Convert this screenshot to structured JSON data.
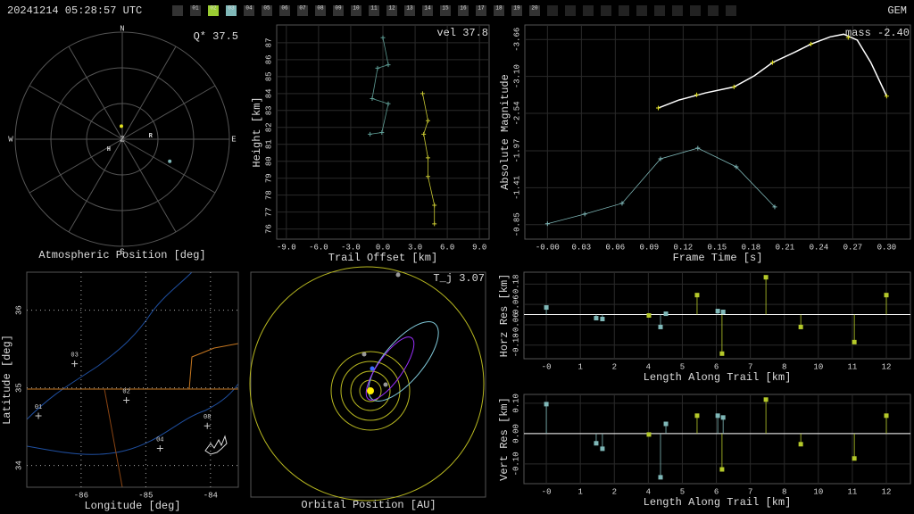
{
  "header": {
    "timestamp": "20241214 05:28:57 UTC",
    "shower": "GEM",
    "stations": [
      {
        "label": "01",
        "color": "#333333"
      },
      {
        "label": "02",
        "color": "#9acd32"
      },
      {
        "label": "03",
        "color": "#7fb8b8"
      },
      {
        "label": "04",
        "color": "#333333"
      },
      {
        "label": "05",
        "color": "#333333"
      },
      {
        "label": "06",
        "color": "#333333"
      },
      {
        "label": "07",
        "color": "#333333"
      },
      {
        "label": "08",
        "color": "#333333"
      },
      {
        "label": "09",
        "color": "#333333"
      },
      {
        "label": "10",
        "color": "#333333"
      },
      {
        "label": "11",
        "color": "#333333"
      },
      {
        "label": "12",
        "color": "#333333"
      },
      {
        "label": "13",
        "color": "#333333"
      },
      {
        "label": "14",
        "color": "#333333"
      },
      {
        "label": "15",
        "color": "#333333"
      },
      {
        "label": "16",
        "color": "#333333"
      },
      {
        "label": "17",
        "color": "#333333"
      },
      {
        "label": "18",
        "color": "#333333"
      },
      {
        "label": "19",
        "color": "#333333"
      },
      {
        "label": "20",
        "color": "#333333"
      }
    ]
  },
  "chart_data": [
    {
      "type": "polar",
      "title": "Atmospheric Position [deg]",
      "annotation": "Q* 37.5",
      "directions": [
        "N",
        "E",
        "S",
        "W"
      ],
      "zenith_label": "Z",
      "rlim": [
        0,
        90
      ],
      "rticks": [
        30,
        60,
        90
      ],
      "spoke_step": 30,
      "markers": {
        "labels": [
          "H",
          "R"
        ],
        "az": [
          234,
          83
        ],
        "zen": [
          14,
          24
        ]
      },
      "points": {
        "az": [
          356,
          115
        ],
        "zen": [
          11,
          44
        ],
        "colors": [
          "#e0e020",
          "#7fb8b8"
        ]
      }
    },
    {
      "type": "line",
      "xlabel": "Trail Offset [km]",
      "ylabel": "Height [km]",
      "annotation": "vel 37.8",
      "xlim": [
        -9.9,
        9.9
      ],
      "xticks": [
        {
          "value": -9,
          "label": "-9.0"
        },
        {
          "value": -6,
          "label": "-6.0"
        },
        {
          "value": -3,
          "label": "-3.0"
        },
        {
          "value": 0,
          "label": "0.0"
        },
        {
          "value": 3,
          "label": "3.0"
        },
        {
          "value": 6,
          "label": "6.0"
        },
        {
          "value": 9,
          "label": "9.0"
        }
      ],
      "ylim": [
        75.4,
        88.05
      ],
      "yticks": [
        76,
        77,
        78,
        79,
        80,
        81,
        82,
        83,
        84,
        85,
        86,
        87
      ],
      "series": [
        {
          "color": "#5f9e96",
          "line": true,
          "marker": "+",
          "x": [
            0,
            0.5,
            -0.5,
            -1,
            0.5,
            -0.1,
            -1.2
          ],
          "values": [
            87.3,
            85.7,
            85.5,
            83.7,
            83.4,
            81.7,
            81.6
          ]
        },
        {
          "color": "#c8c832",
          "line": true,
          "marker": "+",
          "x": [
            3.7,
            4.2,
            3.8,
            4.2,
            4.2,
            4.8,
            4.8
          ],
          "values": [
            84.0,
            82.4,
            81.6,
            80.2,
            79.1,
            77.4,
            76.3
          ]
        }
      ]
    },
    {
      "type": "line",
      "xlabel": "Frame Time [s]",
      "ylabel": "Absolute Magnitude",
      "annotation": "mass -2.40",
      "xlim": [
        -0.02,
        0.321
      ],
      "xticks": [
        {
          "value": 0,
          "label": "-0.00"
        },
        0.03,
        0.06,
        0.09,
        0.12,
        0.15,
        0.18,
        0.21,
        0.24,
        0.27,
        {
          "value": 0.3,
          "label": "0.30"
        }
      ],
      "ylim": [
        -0.63,
        -3.88
      ],
      "yticks": [
        -3.66,
        {
          "value": -3.1,
          "label": "-3.10"
        },
        -2.54,
        -1.97,
        -1.41,
        -0.85
      ],
      "series": [
        {
          "color": "#ffffff",
          "line": true,
          "marker": "none",
          "x": [
            0.098,
            0.116,
            0.14,
            0.165,
            0.183,
            0.199,
            0.219,
            0.233,
            0.25,
            0.262,
            0.274,
            0.286,
            0.3
          ],
          "values": [
            -2.62,
            -2.74,
            -2.85,
            -2.94,
            -3.11,
            -3.31,
            -3.47,
            -3.59,
            -3.7,
            -3.74,
            -3.65,
            -3.31,
            -2.8
          ]
        },
        {
          "color": "#e0e020",
          "line": false,
          "marker": "+",
          "x": [
            0.098,
            0.132,
            0.165,
            0.199,
            0.233,
            0.266,
            0.3
          ],
          "values": [
            -2.62,
            -2.82,
            -2.94,
            -3.31,
            -3.59,
            -3.69,
            -2.8
          ]
        },
        {
          "color": "#7fb8b8",
          "line": true,
          "marker": "+",
          "x": [
            0,
            0.033,
            0.066,
            0.1,
            0.133,
            0.167,
            0.201
          ],
          "values": [
            -0.863,
            -1.011,
            -1.174,
            -1.849,
            -2.011,
            -1.727,
            -1.119
          ]
        }
      ]
    },
    {
      "type": "map",
      "xlabel": "Longitude [deg]",
      "ylabel": "Latitude [deg]",
      "xlim": [
        -86.84,
        -83.57
      ],
      "xticks": [
        -86,
        -85,
        -84
      ],
      "ylim": [
        33.72,
        36.49
      ],
      "yticks": [
        34,
        35,
        36
      ],
      "stations": {
        "labels": [
          "01",
          "02",
          "03",
          "04",
          "08"
        ],
        "x": [
          -86.66,
          -85.3,
          -86.1,
          -84.78,
          -84.05
        ],
        "values": [
          34.64,
          34.84,
          35.31,
          34.22,
          34.51
        ]
      }
    },
    {
      "type": "orbit",
      "title": "Orbital Position [AU]",
      "annotation": "T_j 3.07"
    },
    {
      "type": "stem",
      "xlabel": "Length Along Trail [km]",
      "ylabel": "Horz Res [km]",
      "xlim": [
        -0.79,
        12.85
      ],
      "xticks": [
        {
          "value": 0,
          "label": "-0"
        },
        {
          "value": 1.2,
          "label": "1"
        },
        {
          "value": 2.4,
          "label": "2"
        },
        {
          "value": 3.6,
          "label": "4"
        },
        {
          "value": 4.8,
          "label": "5"
        },
        {
          "value": 6,
          "label": "6"
        },
        {
          "value": 7.2,
          "label": "7"
        },
        {
          "value": 8.4,
          "label": "8"
        },
        {
          "value": 9.6,
          "label": "10"
        },
        {
          "value": 10.8,
          "label": "11"
        },
        12
      ],
      "ylim": [
        -0.26,
        0.25
      ],
      "yticks": [
        0.18,
        0.06,
        -0.06,
        -0.18
      ],
      "series": [
        {
          "color": "#7fb8b8",
          "x": [
            0,
            1.76,
            1.98,
            4.03,
            4.22,
            6.05,
            6.24
          ],
          "values": [
            0.042,
            -0.021,
            -0.026,
            -0.073,
            0.005,
            0.021,
            0.016
          ]
        },
        {
          "color": "#b5c92a",
          "x": [
            3.62,
            5.32,
            6.2,
            7.75,
            8.98,
            10.87,
            12
          ],
          "values": [
            -0.005,
            0.115,
            -0.23,
            0.22,
            -0.073,
            -0.162,
            0.115
          ]
        }
      ]
    },
    {
      "type": "stem",
      "xlabel": "Length Along Trail [km]",
      "ylabel": "Vert Res [km]",
      "xlim": [
        -0.79,
        12.85
      ],
      "xticks": [
        {
          "value": 0,
          "label": "-0"
        },
        {
          "value": 1.2,
          "label": "1"
        },
        {
          "value": 2.4,
          "label": "2"
        },
        {
          "value": 3.6,
          "label": "4"
        },
        {
          "value": 4.8,
          "label": "5"
        },
        {
          "value": 6,
          "label": "6"
        },
        {
          "value": 7.2,
          "label": "7"
        },
        {
          "value": 8.4,
          "label": "8"
        },
        {
          "value": 9.6,
          "label": "10"
        },
        {
          "value": 10.8,
          "label": "11"
        },
        12
      ],
      "ylim": [
        -0.165,
        0.129
      ],
      "yticks": [
        {
          "value": 0.1,
          "label": "0.10"
        },
        {
          "value": 0,
          "label": "0.00"
        },
        {
          "value": -0.1,
          "label": "-0.10"
        }
      ],
      "series": [
        {
          "color": "#7fb8b8",
          "x": [
            0,
            1.76,
            1.98,
            4.03,
            4.22,
            6.05,
            6.24
          ],
          "values": [
            0.097,
            -0.032,
            -0.05,
            -0.144,
            0.032,
            0.059,
            0.053
          ]
        },
        {
          "color": "#b5c92a",
          "x": [
            3.62,
            5.32,
            6.2,
            7.75,
            8.98,
            10.87,
            12
          ],
          "values": [
            -0.003,
            0.059,
            -0.118,
            0.112,
            -0.035,
            -0.082,
            0.059
          ]
        }
      ]
    }
  ]
}
